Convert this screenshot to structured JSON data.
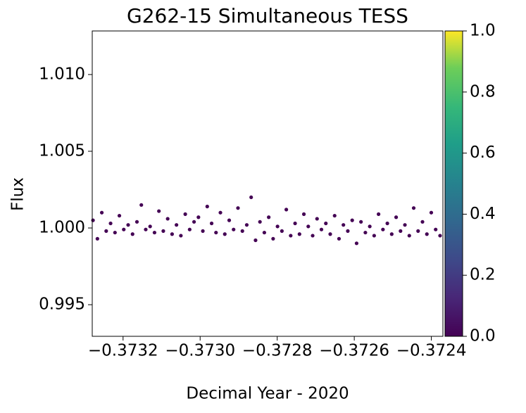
{
  "chart_data": {
    "type": "scatter",
    "title": "G262-15 Simultaneous TESS",
    "xlabel": "Decimal Year - 2020",
    "ylabel": "Flux",
    "color": "#440154",
    "x": [
      -0.373278,
      -0.3732666,
      -0.3732552,
      -0.3732438,
      -0.3732324,
      -0.373221,
      -0.3732096,
      -0.3731982,
      -0.3731868,
      -0.3731754,
      -0.373164,
      -0.3731526,
      -0.3731412,
      -0.3731298,
      -0.3731184,
      -0.373107,
      -0.3730956,
      -0.3730842,
      -0.3730728,
      -0.3730614,
      -0.37305,
      -0.3730386,
      -0.3730272,
      -0.3730158,
      -0.3730044,
      -0.372993,
      -0.3729816,
      -0.3729702,
      -0.3729588,
      -0.3729474,
      -0.372936,
      -0.3729246,
      -0.3729132,
      -0.3729018,
      -0.3728904,
      -0.372879,
      -0.3728676,
      -0.3728562,
      -0.3728448,
      -0.3728334,
      -0.372822,
      -0.3728106,
      -0.3727992,
      -0.3727878,
      -0.3727764,
      -0.372765,
      -0.3727536,
      -0.3727422,
      -0.3727308,
      -0.3727194,
      -0.372708,
      -0.3726966,
      -0.3726852,
      -0.3726738,
      -0.3726624,
      -0.372651,
      -0.3726396,
      -0.3726282,
      -0.3726168,
      -0.3726054,
      -0.372594,
      -0.3725826,
      -0.3725712,
      -0.3725598,
      -0.3725484,
      -0.372537,
      -0.3725256,
      -0.3725142,
      -0.3725028,
      -0.3724914,
      -0.37248,
      -0.3724686,
      -0.3724572,
      -0.3724458,
      -0.3724344,
      -0.372423,
      -0.3724116,
      -0.3724002,
      -0.3723888,
      -0.3723774
    ],
    "values": [
      1.0005,
      0.9993,
      1.001,
      0.9998,
      1.0003,
      0.9997,
      1.0008,
      0.9999,
      1.0002,
      0.9996,
      1.0004,
      1.0015,
      0.9999,
      1.0001,
      0.9997,
      1.0011,
      0.9998,
      1.0006,
      0.9996,
      1.0002,
      0.9995,
      1.0009,
      0.9999,
      1.0004,
      1.0007,
      0.9998,
      1.0014,
      1.0003,
      0.9997,
      1.001,
      0.9996,
      1.0005,
      0.9999,
      1.0013,
      0.9998,
      1.0002,
      1.002,
      0.9992,
      1.0004,
      0.9997,
      1.0007,
      0.9993,
      1.0001,
      0.9998,
      1.0012,
      0.9995,
      1.0003,
      0.9996,
      1.0009,
      1.0001,
      0.9995,
      1.0006,
      0.9999,
      1.0003,
      0.9996,
      1.0008,
      0.9993,
      1.0002,
      0.9998,
      1.0005,
      0.999,
      1.0004,
      0.9997,
      1.0001,
      0.9995,
      1.0009,
      0.9999,
      1.0003,
      0.9996,
      1.0007,
      0.9998,
      1.0002,
      0.9995,
      1.0013,
      0.9998,
      1.0004,
      0.9996,
      1.001,
      0.9999,
      0.9995
    ],
    "xlim": [
      -0.37328,
      -0.37237
    ],
    "ylim": [
      0.99294,
      1.01284
    ],
    "xticks": [
      {
        "value": -0.3732,
        "label": "−0.3732"
      },
      {
        "value": -0.373,
        "label": "−0.3730"
      },
      {
        "value": -0.3728,
        "label": "−0.3728"
      },
      {
        "value": -0.3726,
        "label": "−0.3726"
      },
      {
        "value": -0.3724,
        "label": "−0.3724"
      }
    ],
    "yticks": [
      0.995,
      {
        "value": 1.0,
        "label": "1.000"
      },
      1.005,
      {
        "value": 1.01,
        "label": "1.010"
      }
    ],
    "colorbar": {
      "lim": [
        0,
        1
      ],
      "ticks": [
        {
          "value": 0,
          "label": "0.0"
        },
        0.2,
        0.4,
        0.6,
        0.8,
        {
          "value": 1,
          "label": "1.0"
        }
      ]
    }
  }
}
